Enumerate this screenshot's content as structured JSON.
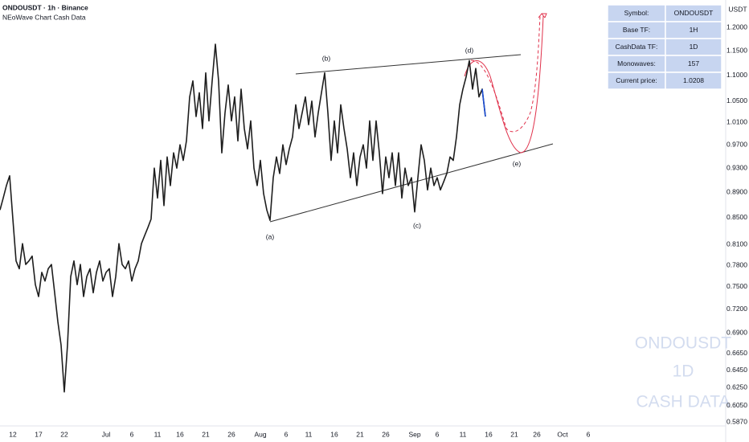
{
  "header": {
    "title": "ONDOUSDT · 1h · Binance",
    "subtitle": "NEoWave Chart Cash Data"
  },
  "info_table": {
    "rows": [
      [
        "Symbol:",
        "ONDOUSDT"
      ],
      [
        "Base TF:",
        "1H"
      ],
      [
        "CashData TF:",
        "1D"
      ],
      [
        "Monowaves:",
        "157"
      ],
      [
        "Current price:",
        "1.0208"
      ]
    ]
  },
  "watermark": [
    "ONDOUSDT",
    "1D",
    "CASH DATA"
  ],
  "chart_data": {
    "type": "line",
    "y_unit": "USDT",
    "log_scale": true,
    "grid": false,
    "ylim": [
      0.583,
      1.261
    ],
    "yticks": [
      {
        "value": 1.2,
        "label": "1.2000"
      },
      {
        "value": 1.15,
        "label": "1.1500"
      },
      {
        "value": 1.1,
        "label": "1.1000"
      },
      {
        "value": 1.05,
        "label": "1.0500"
      },
      {
        "value": 1.01,
        "label": "1.0100"
      },
      {
        "value": 0.97,
        "label": "0.9700"
      },
      {
        "value": 0.93,
        "label": "0.9300"
      },
      {
        "value": 0.89,
        "label": "0.8900"
      },
      {
        "value": 0.85,
        "label": "0.8500"
      },
      {
        "value": 0.81,
        "label": "0.8100"
      },
      {
        "value": 0.78,
        "label": "0.7800"
      },
      {
        "value": 0.75,
        "label": "0.7500"
      },
      {
        "value": 0.72,
        "label": "0.7200"
      },
      {
        "value": 0.69,
        "label": "0.6900"
      },
      {
        "value": 0.665,
        "label": "0.6650"
      },
      {
        "value": 0.645,
        "label": "0.6450"
      },
      {
        "value": 0.625,
        "label": "0.6250"
      },
      {
        "value": 0.605,
        "label": "0.6050"
      },
      {
        "value": 0.587,
        "label": "0.5870"
      }
    ],
    "categories": [
      null,
      null,
      null,
      null,
      "12",
      null,
      null,
      null,
      null,
      null,
      null,
      null,
      "17",
      null,
      null,
      null,
      null,
      null,
      null,
      null,
      "22",
      null,
      null,
      null,
      null,
      null,
      null,
      null,
      null,
      null,
      null,
      null,
      null,
      "Jul",
      null,
      null,
      null,
      null,
      null,
      null,
      null,
      "6",
      null,
      null,
      null,
      null,
      null,
      null,
      null,
      "11",
      null,
      null,
      null,
      null,
      null,
      null,
      "16",
      null,
      null,
      null,
      null,
      null,
      null,
      null,
      "21",
      null,
      null,
      null,
      null,
      null,
      null,
      null,
      "26",
      null,
      null,
      null,
      null,
      null,
      null,
      null,
      null,
      "Aug",
      null,
      null,
      null,
      null,
      null,
      null,
      null,
      "6",
      null,
      null,
      null,
      null,
      null,
      null,
      "11",
      null,
      null,
      null,
      null,
      null,
      null,
      null,
      "16",
      null,
      null,
      null,
      null,
      null,
      null,
      null,
      "21",
      null,
      null,
      null,
      null,
      null,
      null,
      null,
      "26",
      null,
      null,
      null,
      null,
      null,
      null,
      null,
      null,
      "Sep",
      null,
      null,
      null,
      null,
      null,
      null,
      "6",
      null,
      null,
      null,
      null,
      null,
      null,
      null,
      "11",
      null,
      null,
      null,
      null,
      null,
      null,
      null,
      "16",
      null,
      null,
      null,
      null,
      null,
      null,
      null,
      "21",
      null,
      null,
      null,
      null,
      null,
      null,
      "26",
      null,
      null,
      null,
      null,
      null,
      null,
      null,
      "Oct",
      null,
      null,
      null,
      null,
      null,
      null,
      null,
      "6"
    ],
    "series": [
      {
        "color": "#1e1e1e",
        "values": [
          0.862,
          0.881,
          0.901,
          0.917,
          0.848,
          0.786,
          0.775,
          0.811,
          0.781,
          0.786,
          0.793,
          0.753,
          0.737,
          0.77,
          0.758,
          0.775,
          0.781,
          0.742,
          0.704,
          0.675,
          0.62,
          0.675,
          0.764,
          0.786,
          0.753,
          0.781,
          0.737,
          0.764,
          0.775,
          0.742,
          0.77,
          0.786,
          0.758,
          0.77,
          0.775,
          0.737,
          0.764,
          0.811,
          0.781,
          0.775,
          0.786,
          0.758,
          0.775,
          0.786,
          0.811,
          0.823,
          0.835,
          0.848,
          0.93,
          0.881,
          0.943,
          0.869,
          0.949,
          0.901,
          0.956,
          0.93,
          0.97,
          0.943,
          0.977,
          1.058,
          1.089,
          1.021,
          1.066,
          0.999,
          1.105,
          1.013,
          1.089,
          1.164,
          1.089,
          0.956,
          1.028,
          1.081,
          1.013,
          1.058,
          0.977,
          1.073,
          0.999,
          0.963,
          1.013,
          0.93,
          0.901,
          0.943,
          0.888,
          0.862,
          0.846,
          0.914,
          0.949,
          0.921,
          0.97,
          0.936,
          0.963,
          0.984,
          1.043,
          0.999,
          1.028,
          1.058,
          1.006,
          1.05,
          0.984,
          1.028,
          1.066,
          1.105,
          1.028,
          0.943,
          1.013,
          0.956,
          1.043,
          0.999,
          0.963,
          0.914,
          0.956,
          0.901,
          0.949,
          0.97,
          0.93,
          1.013,
          0.943,
          1.013,
          0.956,
          0.888,
          0.949,
          0.914,
          0.956,
          0.901,
          0.956,
          0.881,
          0.93,
          0.901,
          0.914,
          0.859,
          0.914,
          0.97,
          0.943,
          0.894,
          0.93,
          0.901,
          0.914,
          0.894,
          0.907,
          0.921,
          0.949,
          0.943,
          0.984,
          1.043,
          1.073,
          1.097,
          1.13,
          1.073,
          1.114,
          1.058,
          1.073,
          1.021,
          null,
          null,
          null,
          null,
          null,
          null,
          null,
          null,
          null,
          null,
          null,
          null,
          null,
          null,
          null,
          null,
          null,
          null,
          null,
          null,
          null,
          null,
          null,
          null,
          null,
          null,
          null,
          null,
          null,
          null,
          null,
          null
        ]
      },
      {
        "color": "#1c4fd6",
        "values": [
          null,
          null,
          null,
          null,
          null,
          null,
          null,
          null,
          null,
          null,
          null,
          null,
          null,
          null,
          null,
          null,
          null,
          null,
          null,
          null,
          null,
          null,
          null,
          null,
          null,
          null,
          null,
          null,
          null,
          null,
          null,
          null,
          null,
          null,
          null,
          null,
          null,
          null,
          null,
          null,
          null,
          null,
          null,
          null,
          null,
          null,
          null,
          null,
          null,
          null,
          null,
          null,
          null,
          null,
          null,
          null,
          null,
          null,
          null,
          null,
          null,
          null,
          null,
          null,
          null,
          null,
          null,
          null,
          null,
          null,
          null,
          null,
          null,
          null,
          null,
          null,
          null,
          null,
          null,
          null,
          null,
          null,
          null,
          null,
          null,
          null,
          null,
          null,
          null,
          null,
          null,
          null,
          null,
          null,
          null,
          null,
          null,
          null,
          null,
          null,
          null,
          null,
          null,
          null,
          null,
          null,
          null,
          null,
          null,
          null,
          null,
          null,
          null,
          null,
          null,
          null,
          null,
          null,
          null,
          null,
          null,
          null,
          null,
          null,
          null,
          null,
          null,
          null,
          null,
          null,
          null,
          null,
          null,
          null,
          null,
          null,
          null,
          null,
          null,
          null,
          null,
          null,
          null,
          null,
          null,
          null,
          null,
          null,
          null,
          null,
          1.073,
          1.021,
          null,
          null,
          null,
          null,
          null,
          null,
          null,
          null,
          null,
          null,
          null,
          null,
          null,
          null,
          null,
          null,
          null,
          null,
          null,
          null,
          null,
          null,
          null,
          null,
          null,
          null,
          null,
          null,
          null,
          null,
          null,
          null
        ]
      }
    ],
    "annotations": [
      "(a)",
      "(b)",
      "(c)",
      "(d)",
      "(e)"
    ]
  }
}
